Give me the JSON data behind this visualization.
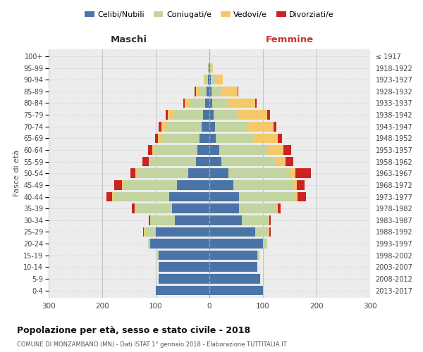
{
  "age_groups": [
    "0-4",
    "5-9",
    "10-14",
    "15-19",
    "20-24",
    "25-29",
    "30-34",
    "35-39",
    "40-44",
    "45-49",
    "50-54",
    "55-59",
    "60-64",
    "65-69",
    "70-74",
    "75-79",
    "80-84",
    "85-89",
    "90-94",
    "95-99",
    "100+"
  ],
  "birth_years": [
    "2013-2017",
    "2008-2012",
    "2003-2007",
    "1998-2002",
    "1993-1997",
    "1988-1992",
    "1983-1987",
    "1978-1982",
    "1973-1977",
    "1968-1972",
    "1963-1967",
    "1958-1962",
    "1953-1957",
    "1948-1952",
    "1943-1947",
    "1938-1942",
    "1933-1937",
    "1928-1932",
    "1923-1927",
    "1918-1922",
    "≤ 1917"
  ],
  "male_celibi": [
    100,
    95,
    95,
    95,
    110,
    100,
    65,
    70,
    75,
    60,
    40,
    25,
    22,
    18,
    15,
    12,
    8,
    5,
    2,
    1,
    0
  ],
  "male_coniugati": [
    0,
    0,
    0,
    2,
    5,
    20,
    45,
    70,
    105,
    100,
    95,
    85,
    80,
    70,
    65,
    55,
    30,
    15,
    5,
    1,
    0
  ],
  "male_vedovi": [
    0,
    0,
    0,
    0,
    0,
    2,
    0,
    0,
    2,
    3,
    3,
    3,
    5,
    8,
    10,
    10,
    8,
    5,
    3,
    1,
    0
  ],
  "male_divorziati": [
    0,
    0,
    0,
    0,
    0,
    2,
    3,
    5,
    10,
    15,
    10,
    12,
    8,
    5,
    5,
    5,
    3,
    2,
    0,
    0,
    0
  ],
  "female_nubili": [
    100,
    95,
    90,
    90,
    100,
    85,
    60,
    55,
    55,
    45,
    35,
    22,
    18,
    12,
    10,
    8,
    5,
    4,
    2,
    1,
    0
  ],
  "female_coniugate": [
    0,
    0,
    0,
    3,
    8,
    25,
    50,
    70,
    105,
    110,
    115,
    100,
    90,
    70,
    60,
    45,
    30,
    18,
    8,
    2,
    0
  ],
  "female_vedove": [
    0,
    0,
    0,
    0,
    0,
    2,
    2,
    3,
    5,
    8,
    10,
    20,
    30,
    45,
    50,
    55,
    50,
    30,
    15,
    3,
    0
  ],
  "female_divorziate": [
    0,
    0,
    0,
    0,
    0,
    2,
    3,
    5,
    15,
    15,
    30,
    15,
    15,
    8,
    5,
    5,
    3,
    2,
    0,
    0,
    0
  ],
  "colors": {
    "celibi": "#4a74a8",
    "coniugati": "#c2d4a0",
    "vedovi": "#f5c96a",
    "divorziati": "#cc2222"
  },
  "title": "Popolazione per età, sesso e stato civile - 2018",
  "subtitle": "COMUNE DI MONZAMBANO (MN) - Dati ISTAT 1° gennaio 2018 - Elaborazione TUTTITALIA.IT",
  "xlabel_left": "Maschi",
  "xlabel_right": "Femmine",
  "ylabel_left": "Fasce di età",
  "xlim": 300,
  "legend_labels": [
    "Celibi/Nubili",
    "Coniugati/e",
    "Vedovi/e",
    "Divorziati/e"
  ]
}
